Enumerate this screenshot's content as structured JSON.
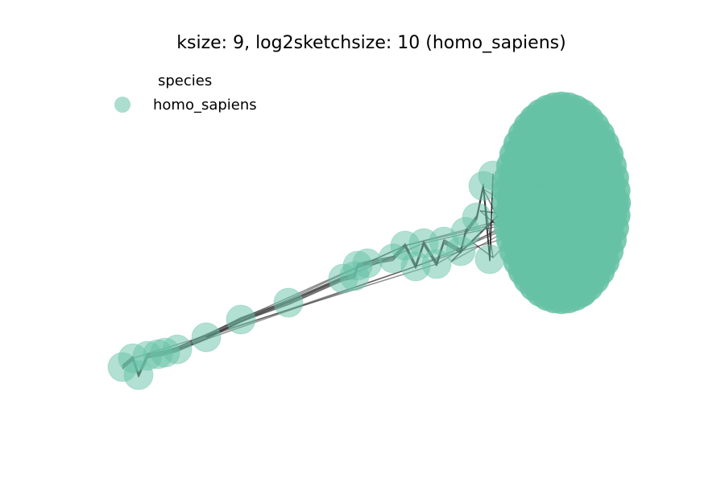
{
  "title": "ksize: 9, log2sketchsize: 10 (homo_sapiens)",
  "legend": {
    "title": "species",
    "entries": [
      {
        "label": "homo_sapiens",
        "color": "#66c2a5"
      }
    ]
  },
  "colors": {
    "node": "#66c2a5",
    "edge": "#2b2b2b"
  }
}
